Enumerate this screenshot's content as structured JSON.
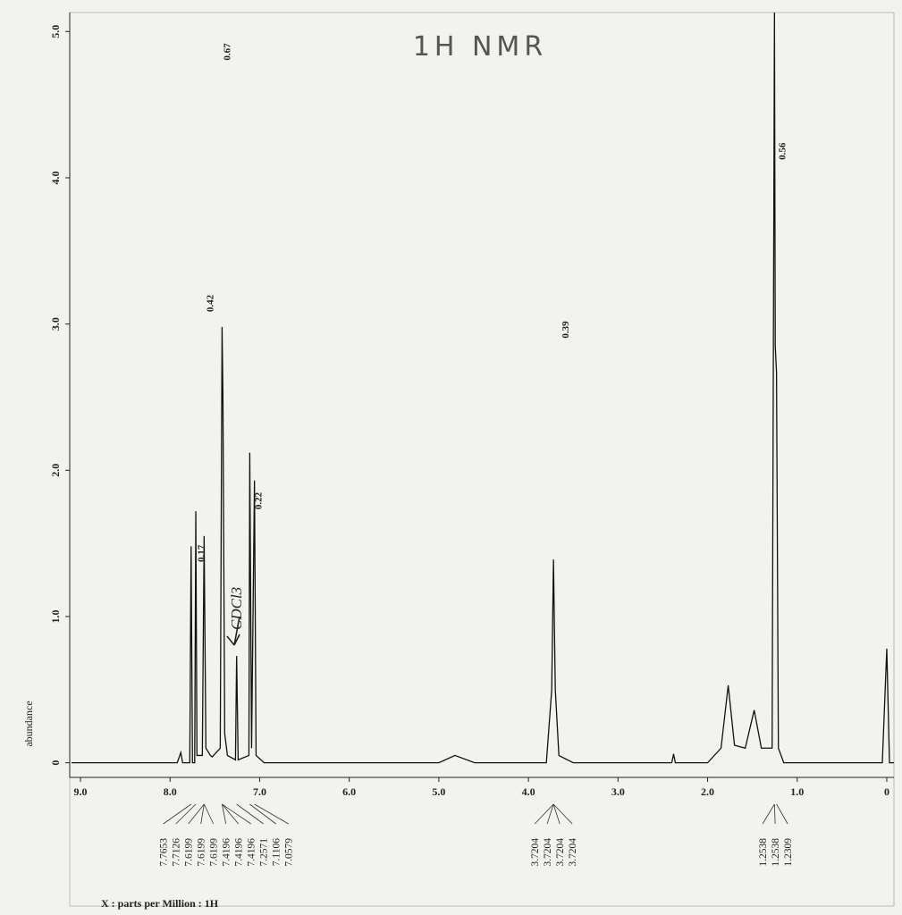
{
  "chart_data": {
    "type": "line",
    "title": "1H NMR",
    "y_label": "abundance",
    "x_label": "X : parts per Million : 1H",
    "color": "#111111",
    "xlim": [
      9.12,
      -0.08
    ],
    "ylim": [
      -0.1,
      5.13
    ],
    "xticks": [
      {
        "value": 9,
        "label": "9.0"
      },
      {
        "value": 8,
        "label": "8.0"
      },
      {
        "value": 7,
        "label": "7.0"
      },
      {
        "value": 6,
        "label": "6.0"
      },
      {
        "value": 5,
        "label": "5.0"
      },
      {
        "value": 4,
        "label": "4.0"
      },
      {
        "value": 3,
        "label": "3.0"
      },
      {
        "value": 2,
        "label": "2.0"
      },
      {
        "value": 1,
        "label": "1.0"
      },
      0
    ],
    "yticks": [
      0,
      {
        "value": 1,
        "label": "1.0"
      },
      {
        "value": 2,
        "label": "2.0"
      },
      {
        "value": 3,
        "label": "3.0"
      },
      {
        "value": 4,
        "label": "4.0"
      },
      {
        "value": 5,
        "label": "5.0"
      }
    ],
    "x": [
      9.1,
      7.92,
      7.88,
      7.86,
      7.78,
      7.7653,
      7.75,
      7.725,
      7.7126,
      7.7,
      7.64,
      7.6199,
      7.6,
      7.55,
      7.53,
      7.44,
      7.4196,
      7.41,
      7.39,
      7.36,
      7.27,
      7.2571,
      7.24,
      7.12,
      7.1106,
      7.09,
      7.0579,
      7.04,
      6.95,
      5.0,
      4.82,
      4.6,
      3.8,
      3.74,
      3.7204,
      3.7,
      3.66,
      3.5,
      2.4,
      2.38,
      2.36,
      2.0,
      1.85,
      1.77,
      1.7,
      1.58,
      1.48,
      1.4,
      1.28,
      1.2538,
      1.245,
      1.2309,
      1.21,
      1.15,
      0.05,
      0,
      -0.03,
      -0.08
    ],
    "values": [
      0,
      0,
      0.07,
      0,
      0,
      1.48,
      0,
      0,
      1.72,
      0.05,
      0.05,
      1.55,
      0.1,
      0.05,
      0.04,
      0.1,
      2.98,
      2.5,
      0.2,
      0.05,
      0.02,
      0.73,
      0.02,
      0.05,
      2.12,
      0.1,
      1.93,
      0.05,
      0,
      0,
      0.05,
      0,
      0,
      0.5,
      1.39,
      0.5,
      0.05,
      0,
      0,
      0.06,
      0,
      0,
      0.1,
      0.53,
      0.12,
      0.1,
      0.36,
      0.1,
      0.1,
      5.13,
      2.85,
      2.67,
      0.1,
      0,
      0,
      0.78,
      0,
      0
    ],
    "peaks": [
      7.7653,
      7.7126,
      7.6199,
      7.6199,
      7.6199,
      7.4196,
      7.4196,
      7.4196,
      7.2571,
      7.1106,
      7.0579,
      3.7204,
      3.7204,
      3.7204,
      3.7204,
      1.2538,
      1.2538,
      1.2309
    ],
    "integrals": [
      {
        "text": "0.67",
        "x": 7.33,
        "y": 4.92
      },
      {
        "text": "0.42",
        "x": 7.52,
        "y": 3.2
      },
      {
        "text": "0.17",
        "x": 7.62,
        "y": 1.49
      },
      {
        "text": "0.22",
        "x": 6.98,
        "y": 1.85
      },
      {
        "text": "0.39",
        "x": 3.55,
        "y": 3.02
      },
      {
        "text": "0.56",
        "x": 1.13,
        "y": 4.24
      }
    ],
    "solvent_note": "CDCl3"
  }
}
